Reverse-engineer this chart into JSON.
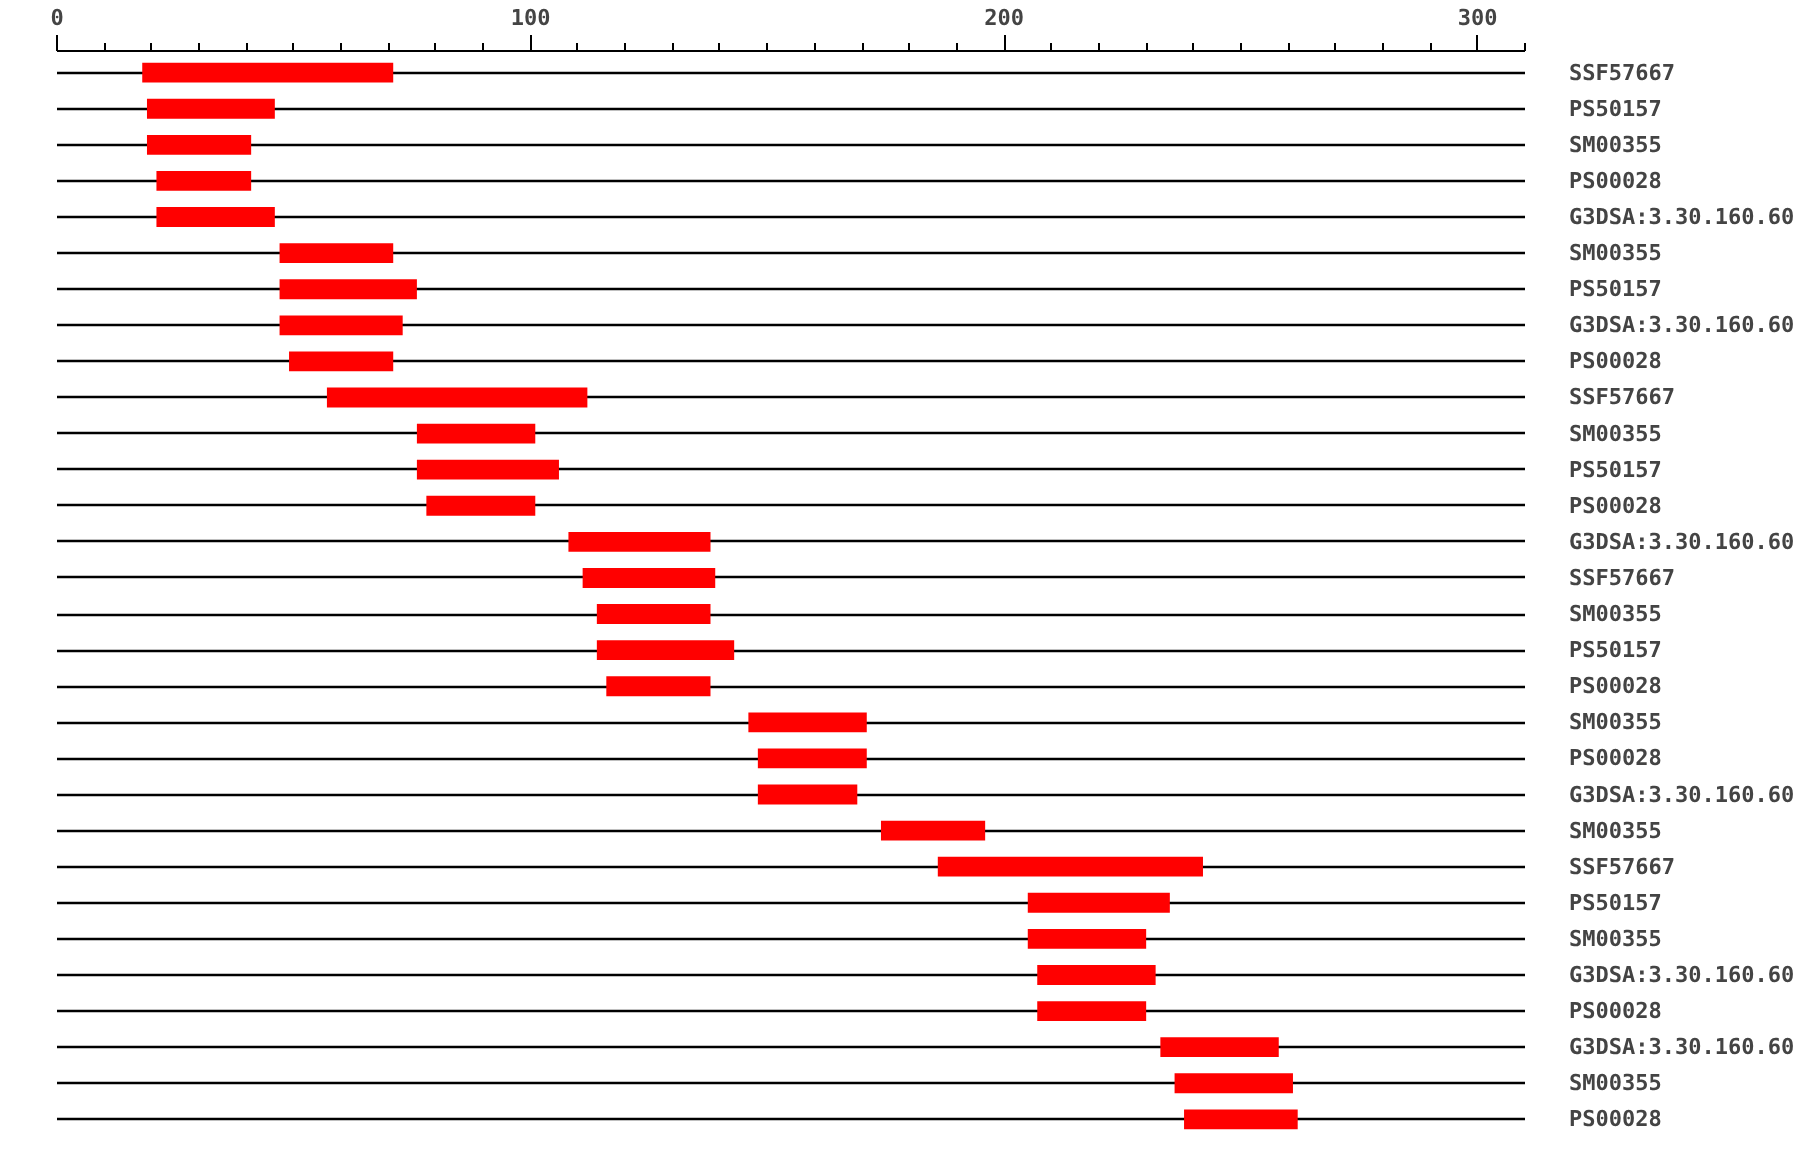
{
  "chart_data": {
    "type": "bar",
    "orientation": "horizontal",
    "categories": [
      "SSF57667",
      "PS50157",
      "SM00355",
      "PS00028",
      "G3DSA:3.30.160.60",
      "SM00355",
      "PS50157",
      "G3DSA:3.30.160.60",
      "PS00028",
      "SSF57667",
      "SM00355",
      "PS50157",
      "PS00028",
      "G3DSA:3.30.160.60",
      "SSF57667",
      "SM00355",
      "PS50157",
      "PS00028",
      "SM00355",
      "PS00028",
      "G3DSA:3.30.160.60",
      "SM00355",
      "SSF57667",
      "PS50157",
      "SM00355",
      "G3DSA:3.30.160.60",
      "PS00028",
      "G3DSA:3.30.160.60",
      "SM00355",
      "PS00028"
    ],
    "base": [
      18,
      19,
      19,
      21,
      21,
      47,
      47,
      47,
      49,
      57,
      76,
      76,
      78,
      108,
      111,
      114,
      114,
      116,
      146,
      148,
      148,
      174,
      186,
      205,
      205,
      207,
      207,
      233,
      236,
      238
    ],
    "values": [
      53,
      27,
      22,
      20,
      25,
      24,
      29,
      26,
      22,
      55,
      25,
      30,
      23,
      30,
      28,
      24,
      29,
      22,
      25,
      23,
      21,
      22,
      56,
      30,
      25,
      25,
      23,
      25,
      25,
      24
    ],
    "color": "#ff0000",
    "xlim": [
      0,
      310
    ],
    "xticks": [
      0,
      {
        "value": 10,
        "label": null
      },
      {
        "value": 20,
        "label": null
      },
      {
        "value": 30,
        "label": null
      },
      {
        "value": 40,
        "label": null
      },
      {
        "value": 50,
        "label": null
      },
      {
        "value": 60,
        "label": null
      },
      {
        "value": 70,
        "label": null
      },
      {
        "value": 80,
        "label": null
      },
      {
        "value": 90,
        "label": null
      },
      100,
      {
        "value": 110,
        "label": null
      },
      {
        "value": 120,
        "label": null
      },
      {
        "value": 130,
        "label": null
      },
      {
        "value": 140,
        "label": null
      },
      {
        "value": 150,
        "label": null
      },
      {
        "value": 160,
        "label": null
      },
      {
        "value": 170,
        "label": null
      },
      {
        "value": 180,
        "label": null
      },
      {
        "value": 190,
        "label": null
      },
      200,
      {
        "value": 210,
        "label": null
      },
      {
        "value": 220,
        "label": null
      },
      {
        "value": 230,
        "label": null
      },
      {
        "value": 240,
        "label": null
      },
      {
        "value": 250,
        "label": null
      },
      {
        "value": 260,
        "label": null
      },
      {
        "value": 270,
        "label": null
      },
      {
        "value": 280,
        "label": null
      },
      {
        "value": 290,
        "label": null
      },
      300,
      {
        "value": 310,
        "label": null
      }
    ],
    "grid": "y"
  }
}
